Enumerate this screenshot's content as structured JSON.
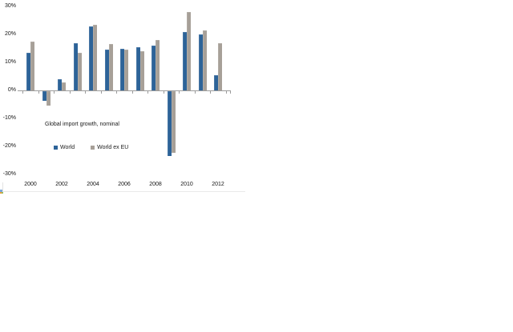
{
  "chart_data": {
    "type": "bar",
    "title": "Global import growth, nominal",
    "categories": [
      "2000",
      "2001",
      "2002",
      "2003",
      "2004",
      "2005",
      "2006",
      "2007",
      "2008",
      "2009",
      "2010",
      "2011",
      "2012"
    ],
    "series": [
      {
        "name": "World",
        "color": "#2d6398",
        "values": [
          13.5,
          -3.5,
          4.0,
          17.0,
          23.0,
          14.5,
          15.0,
          15.5,
          16.0,
          -23.0,
          21.0,
          20.0,
          5.5
        ]
      },
      {
        "name": "World ex EU",
        "color": "#a7a098",
        "values": [
          17.5,
          -5.0,
          3.0,
          13.5,
          23.5,
          16.5,
          14.5,
          14.0,
          18.0,
          -22.0,
          28.0,
          21.5,
          17.0
        ]
      }
    ],
    "y_ticks": [
      "30%",
      "20%",
      "10%",
      "0%",
      "-10%",
      "-20%",
      "-30%"
    ],
    "x_tick_labels": [
      "2000",
      "2002",
      "2004",
      "2006",
      "2008",
      "2010",
      "2012"
    ],
    "ylim": [
      -30,
      30
    ],
    "y_step": 10,
    "grid": false,
    "legend_position": "inside-left-middle"
  },
  "colors": {
    "axis": "#9c9c9c",
    "text": "#141414",
    "artifact_blue": "#7da7d9",
    "artifact_orange": "#e9a13b",
    "artifact_green": "#9bbb59"
  }
}
